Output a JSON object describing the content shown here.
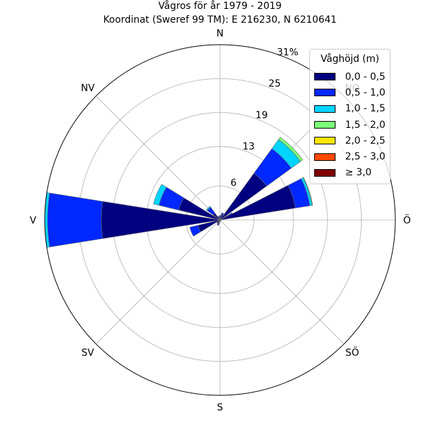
{
  "chart_data": {
    "type": "windrose",
    "title_line1": "Vågros för år 1979 - 2019",
    "title_line2": "Koordinat (Sweref 99 TM): E 216230, N 6210641",
    "direction_labels": [
      {
        "label": "N",
        "angle_deg": 0
      },
      {
        "label": "NO",
        "angle_deg": 45
      },
      {
        "label": "Ö",
        "angle_deg": 90
      },
      {
        "label": "SÖ",
        "angle_deg": 135
      },
      {
        "label": "S",
        "angle_deg": 180
      },
      {
        "label": "SV",
        "angle_deg": 225
      },
      {
        "label": "V",
        "angle_deg": 270
      },
      {
        "label": "NV",
        "angle_deg": 315
      }
    ],
    "radial_ticks": [
      {
        "value": 6,
        "label": "6"
      },
      {
        "value": 13,
        "label": "13"
      },
      {
        "value": 19,
        "label": "19"
      },
      {
        "value": 25,
        "label": "25"
      },
      {
        "value": 31,
        "label": "31%"
      }
    ],
    "rmax": 31,
    "legend": {
      "title": "Våghöjd (m)",
      "placement": "top-right",
      "items": [
        {
          "label": "0,0 - 0,5",
          "color": "#000080"
        },
        {
          "label": "0,5 - 1,0",
          "color": "#0028ff"
        },
        {
          "label": "1,0 - 1,5",
          "color": "#00d4ff"
        },
        {
          "label": "1,5 - 2,0",
          "color": "#7dff7a"
        },
        {
          "label": "2,0 - 2,5",
          "color": "#ffe600"
        },
        {
          "label": "2,5 - 3,0",
          "color": "#ff4800"
        },
        {
          "label": "≥ 3,0",
          "color": "#800000"
        }
      ]
    },
    "sectors": [
      {
        "direction_deg": 0,
        "values": [
          0.5,
          0.3,
          0,
          0,
          0,
          0,
          0
        ]
      },
      {
        "direction_deg": 22.5,
        "values": [
          1.0,
          0.3,
          0,
          0,
          0,
          0,
          0
        ]
      },
      {
        "direction_deg": 45,
        "values": [
          10.2,
          5.4,
          2.0,
          0.5,
          0,
          0,
          0
        ]
      },
      {
        "direction_deg": 67.5,
        "values": [
          1.7,
          0.7,
          0.1,
          0,
          0,
          0,
          0
        ]
      },
      {
        "direction_deg": 72,
        "values": [
          13.5,
          2.6,
          0.4,
          0.1,
          0,
          0,
          0
        ]
      },
      {
        "direction_deg": 90,
        "values": [
          0.2,
          0,
          0,
          0,
          0,
          0,
          0
        ]
      },
      {
        "direction_deg": 112.5,
        "values": [
          0.2,
          0,
          0,
          0,
          0,
          0,
          0
        ]
      },
      {
        "direction_deg": 135,
        "values": [
          0.2,
          0,
          0,
          0,
          0,
          0,
          0
        ]
      },
      {
        "direction_deg": 157.5,
        "values": [
          0.2,
          0,
          0,
          0,
          0,
          0,
          0
        ]
      },
      {
        "direction_deg": 180,
        "values": [
          0.3,
          0,
          0,
          0,
          0,
          0,
          0
        ]
      },
      {
        "direction_deg": 202.5,
        "values": [
          0.8,
          0.2,
          0,
          0,
          0,
          0,
          0
        ]
      },
      {
        "direction_deg": 225,
        "values": [
          0.5,
          0.2,
          0,
          0,
          0,
          0,
          0
        ]
      },
      {
        "direction_deg": 247.5,
        "values": [
          4.0,
          1.5,
          0,
          0,
          0,
          0,
          0
        ]
      },
      {
        "direction_deg": 270,
        "values": [
          21.0,
          9.5,
          0.5,
          0,
          0,
          0,
          0
        ]
      },
      {
        "direction_deg": 292.5,
        "values": [
          7.5,
          3.6,
          1.0,
          0,
          0,
          0,
          0
        ]
      },
      {
        "direction_deg": 315,
        "values": [
          1.5,
          1.3,
          0.2,
          0,
          0,
          0,
          0
        ]
      },
      {
        "direction_deg": 337.5,
        "values": [
          0.5,
          0.2,
          0,
          0,
          0,
          0,
          0
        ]
      }
    ]
  }
}
